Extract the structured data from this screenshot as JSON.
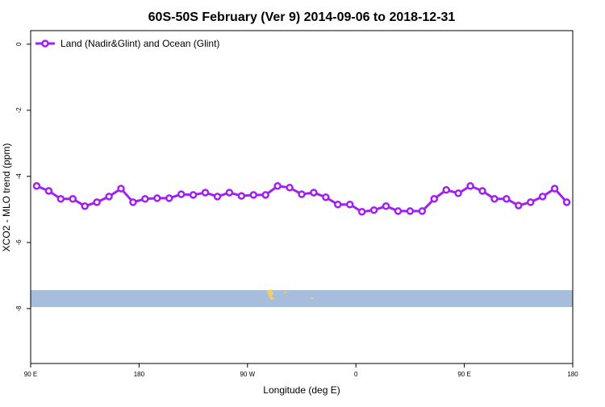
{
  "chart_data": {
    "type": "line",
    "title": "60S-50S February (Ver 9)   2014-09-06 to 2018-12-31",
    "x_label": "Longitude (deg E)",
    "y_label": "XCO2 - MLO trend (ppm)",
    "x": [
      95,
      105,
      115,
      125,
      135,
      145,
      155,
      165,
      175,
      185,
      195,
      205,
      215,
      225,
      235,
      245,
      255,
      265,
      275,
      285,
      295,
      305,
      315,
      325,
      335,
      345,
      355,
      365,
      375,
      385,
      395,
      405,
      415,
      425,
      435,
      445,
      455,
      465,
      475,
      485,
      495,
      505,
      515,
      525,
      535
    ],
    "series": [
      {
        "name": "Land (Nadir&Glint) and Ocean (Glint)",
        "color": "#a020f0",
        "values": [
          -4.29,
          -4.44,
          -4.68,
          -4.68,
          -4.9,
          -4.78,
          -4.61,
          -4.37,
          -4.78,
          -4.68,
          -4.66,
          -4.66,
          -4.54,
          -4.56,
          -4.49,
          -4.61,
          -4.49,
          -4.59,
          -4.56,
          -4.56,
          -4.29,
          -4.34,
          -4.54,
          -4.49,
          -4.63,
          -4.85,
          -4.85,
          -5.07,
          -5.02,
          -4.9,
          -5.05,
          -5.05,
          -5.05,
          -4.68,
          -4.41,
          -4.51,
          -4.29,
          -4.44,
          -4.68,
          -4.68,
          -4.88,
          -4.78,
          -4.61,
          -4.37,
          -4.78
        ]
      }
    ],
    "xlim": [
      90,
      540
    ],
    "xticks": [
      {
        "value": 90,
        "label": "90 E"
      },
      180,
      {
        "value": 270,
        "label": "90 W"
      },
      {
        "value": 360,
        "label": "0"
      },
      {
        "value": 450,
        "label": "90 E"
      },
      {
        "value": 540,
        "label": "180"
      }
    ],
    "ylim": [
      -9.66,
      0.41
    ],
    "yticks": [
      0,
      -2,
      -4,
      -6,
      -8
    ],
    "legend": "top-left"
  }
}
